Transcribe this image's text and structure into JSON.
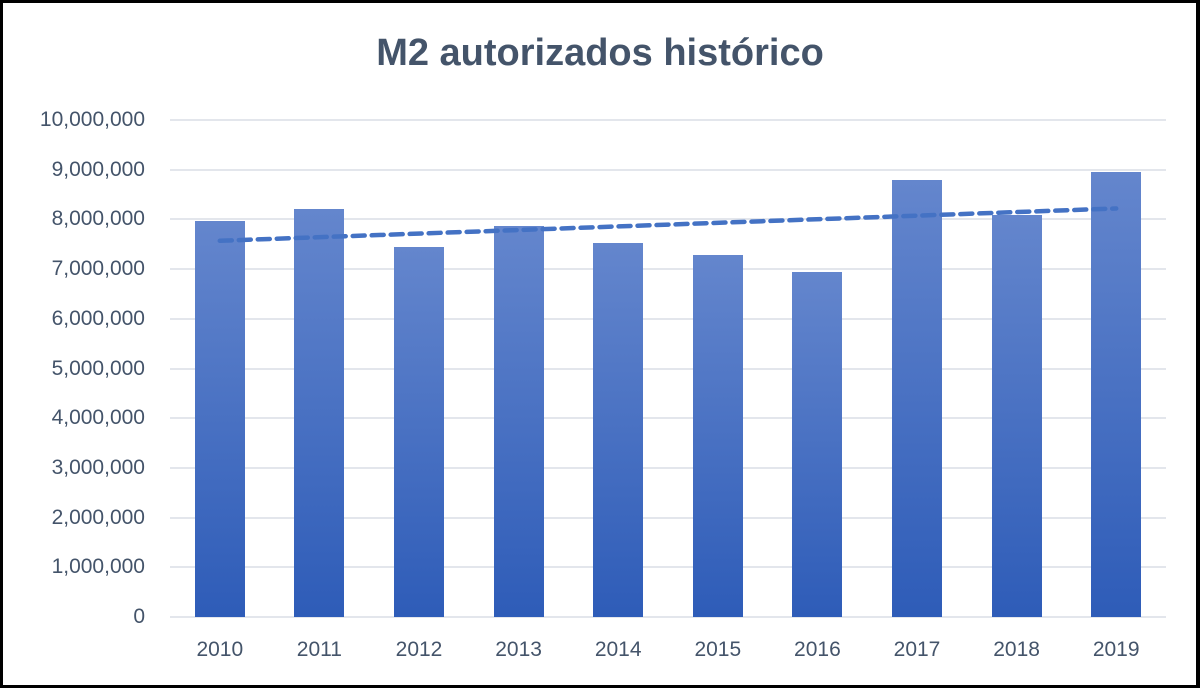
{
  "chart_data": {
    "type": "bar",
    "title": "M2 autorizados histórico",
    "xlabel": "",
    "ylabel": "",
    "ylim": [
      0,
      10000000
    ],
    "yticks": [
      "0",
      "1,000,000",
      "2,000,000",
      "3,000,000",
      "4,000,000",
      "5,000,000",
      "6,000,000",
      "7,000,000",
      "8,000,000",
      "9,000,000",
      "10,000,000"
    ],
    "categories": [
      "2010",
      "2011",
      "2012",
      "2013",
      "2014",
      "2015",
      "2016",
      "2017",
      "2018",
      "2019"
    ],
    "values": [
      7960000,
      8200000,
      7440000,
      7860000,
      7520000,
      7280000,
      6940000,
      8790000,
      8080000,
      8950000
    ],
    "trendline": {
      "type": "linear",
      "style": "dashed",
      "start": 7570000,
      "end": 8220000
    },
    "grid": true,
    "legend": "none",
    "colors": {
      "bar_top": "#6486CD",
      "bar_bottom": "#2E5CB8",
      "trend": "#4472C4",
      "text": "#44546A",
      "grid": "#E3E6EC"
    }
  }
}
